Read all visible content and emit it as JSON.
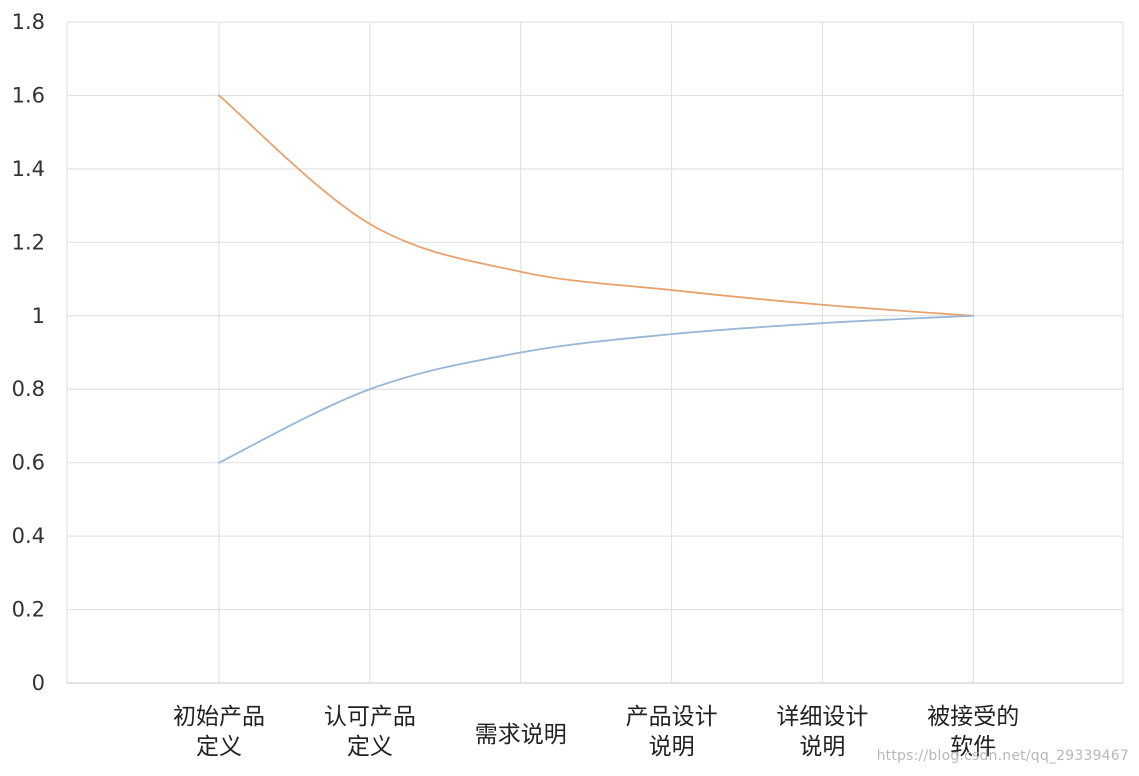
{
  "chart_data": {
    "type": "line",
    "categories": [
      [
        "初始产品",
        "定义"
      ],
      [
        "认可产品",
        "定义"
      ],
      [
        "需求说明"
      ],
      [
        "产品设计",
        "说明"
      ],
      [
        "详细设计",
        "说明"
      ],
      [
        "被接受的",
        "软件"
      ]
    ],
    "series": [
      {
        "color": "#e8a26c",
        "values": [
          1.6,
          1.25,
          1.12,
          1.07,
          1.03,
          1.0
        ]
      },
      {
        "color": "#98b7d7",
        "values": [
          0.6,
          0.8,
          0.9,
          0.95,
          0.98,
          1.0
        ]
      }
    ],
    "ylim": [
      0,
      1.8
    ],
    "yticks": [
      "0",
      "0.2",
      "0.4",
      "0.6",
      "0.8",
      "1",
      "1.2",
      "1.4",
      "1.6",
      "1.8"
    ],
    "title": "",
    "xlabel": "",
    "ylabel": "",
    "grid": true,
    "legend": "none"
  },
  "watermark": "https://blog.csdn.net/qq_29339467"
}
